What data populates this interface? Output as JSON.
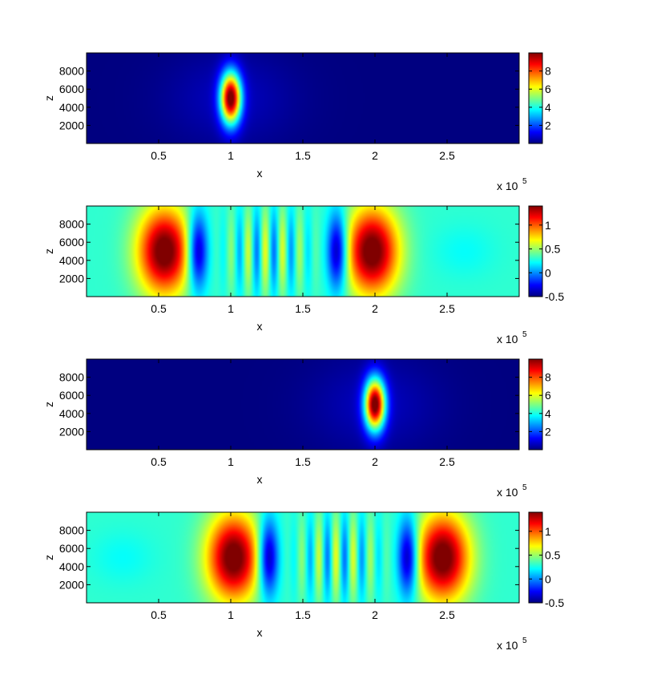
{
  "colors": {
    "jet_stops": [
      "#000080",
      "#0000ff",
      "#0080ff",
      "#00ffff",
      "#80ff80",
      "#ffff00",
      "#ff8000",
      "#ff0000",
      "#800000"
    ]
  },
  "chart_data": [
    {
      "type": "heatmap",
      "title": "",
      "xlabel": "x",
      "ylabel": "z",
      "x_exponent_label": "x 10",
      "x_exponent": "5",
      "xlim": [
        0,
        300000
      ],
      "ylim": [
        0,
        10000
      ],
      "xticks": [
        50000,
        100000,
        150000,
        200000,
        250000
      ],
      "xtick_labels": [
        "0.5",
        "1",
        "1.5",
        "2",
        "2.5"
      ],
      "yticks": [
        2000,
        4000,
        6000,
        8000
      ],
      "ytick_labels": [
        "2000",
        "4000",
        "6000",
        "8000"
      ],
      "clim": [
        0,
        10
      ],
      "colorbar_ticks": [
        2,
        4,
        6,
        8
      ],
      "colorbar_labels": [
        "2",
        "4",
        "6",
        "8"
      ],
      "field": {
        "background": 0,
        "components": [
          {
            "kind": "gaussian",
            "x0": 100000,
            "z0": 5000,
            "sx": 5000,
            "sz": 2000,
            "amp": 10
          },
          {
            "kind": "gaussian",
            "x0": 100000,
            "z0": 5000,
            "sx": 30000,
            "sz": 3500,
            "amp": 0.6
          }
        ]
      }
    },
    {
      "type": "heatmap",
      "title": "",
      "xlabel": "x",
      "ylabel": "z",
      "x_exponent_label": "x 10",
      "x_exponent": "5",
      "xlim": [
        0,
        300000
      ],
      "ylim": [
        0,
        10000
      ],
      "xticks": [
        50000,
        100000,
        150000,
        200000,
        250000
      ],
      "xtick_labels": [
        "0.5",
        "1",
        "1.5",
        "2",
        "2.5"
      ],
      "yticks": [
        2000,
        4000,
        6000,
        8000
      ],
      "ytick_labels": [
        "2000",
        "4000",
        "6000",
        "8000"
      ],
      "clim": [
        -0.5,
        1.4
      ],
      "colorbar_ticks": [
        -0.5,
        0,
        0.5,
        1
      ],
      "colorbar_labels": [
        "-0.5",
        "0",
        "0.5",
        "1"
      ],
      "field": {
        "background": 0.3,
        "components": [
          {
            "kind": "gaussian",
            "x0": 54000,
            "z0": 5000,
            "sx": 13000,
            "sz": 3400,
            "amp": 1.2
          },
          {
            "kind": "gaussian",
            "x0": 198000,
            "z0": 5000,
            "sx": 13000,
            "sz": 3400,
            "amp": 1.2
          },
          {
            "kind": "gaussian",
            "x0": 77000,
            "z0": 5000,
            "sx": 5000,
            "sz": 3000,
            "amp": -0.85
          },
          {
            "kind": "gaussian",
            "x0": 174000,
            "z0": 5000,
            "sx": 5000,
            "sz": 3000,
            "amp": -0.85
          },
          {
            "kind": "wave",
            "x_from": 88000,
            "x_to": 164000,
            "period": 12000,
            "phase_x": 88000,
            "sz": 3400,
            "amp": 0.35
          },
          {
            "kind": "gaussian",
            "x0": 262000,
            "z0": 5000,
            "sx": 15000,
            "sz": 2000,
            "amp": -0.08
          }
        ]
      }
    },
    {
      "type": "heatmap",
      "title": "",
      "xlabel": "x",
      "ylabel": "z",
      "x_exponent_label": "x 10",
      "x_exponent": "5",
      "xlim": [
        0,
        300000
      ],
      "ylim": [
        0,
        10000
      ],
      "xticks": [
        50000,
        100000,
        150000,
        200000,
        250000
      ],
      "xtick_labels": [
        "0.5",
        "1",
        "1.5",
        "2",
        "2.5"
      ],
      "yticks": [
        2000,
        4000,
        6000,
        8000
      ],
      "ytick_labels": [
        "2000",
        "4000",
        "6000",
        "8000"
      ],
      "clim": [
        0,
        10
      ],
      "colorbar_ticks": [
        2,
        4,
        6,
        8
      ],
      "colorbar_labels": [
        "2",
        "4",
        "6",
        "8"
      ],
      "field": {
        "background": 0,
        "components": [
          {
            "kind": "gaussian",
            "x0": 200000,
            "z0": 5000,
            "sx": 5000,
            "sz": 2000,
            "amp": 10
          },
          {
            "kind": "gaussian",
            "x0": 200000,
            "z0": 5000,
            "sx": 30000,
            "sz": 3500,
            "amp": 0.6
          }
        ]
      }
    },
    {
      "type": "heatmap",
      "title": "",
      "xlabel": "x",
      "ylabel": "z",
      "x_exponent_label": "x 10",
      "x_exponent": "5",
      "xlim": [
        0,
        300000
      ],
      "ylim": [
        0,
        10000
      ],
      "xticks": [
        50000,
        100000,
        150000,
        200000,
        250000
      ],
      "xtick_labels": [
        "0.5",
        "1",
        "1.5",
        "2",
        "2.5"
      ],
      "yticks": [
        2000,
        4000,
        6000,
        8000
      ],
      "ytick_labels": [
        "2000",
        "4000",
        "6000",
        "8000"
      ],
      "clim": [
        -0.5,
        1.4
      ],
      "colorbar_ticks": [
        -0.5,
        0,
        0.5,
        1
      ],
      "colorbar_labels": [
        "-0.5",
        "0",
        "0.5",
        "1"
      ],
      "field": {
        "background": 0.3,
        "components": [
          {
            "kind": "gaussian",
            "x0": 102000,
            "z0": 5000,
            "sx": 13000,
            "sz": 3400,
            "amp": 1.2
          },
          {
            "kind": "gaussian",
            "x0": 247000,
            "z0": 5000,
            "sx": 13000,
            "sz": 3400,
            "amp": 1.2
          },
          {
            "kind": "gaussian",
            "x0": 126000,
            "z0": 5000,
            "sx": 5000,
            "sz": 3000,
            "amp": -0.85
          },
          {
            "kind": "gaussian",
            "x0": 223000,
            "z0": 5000,
            "sx": 5000,
            "sz": 3000,
            "amp": -0.85
          },
          {
            "kind": "wave",
            "x_from": 137000,
            "x_to": 213000,
            "period": 12000,
            "phase_x": 137000,
            "sz": 3400,
            "amp": 0.35
          },
          {
            "kind": "gaussian",
            "x0": 25000,
            "z0": 5000,
            "sx": 15000,
            "sz": 2000,
            "amp": -0.08
          }
        ]
      }
    }
  ]
}
